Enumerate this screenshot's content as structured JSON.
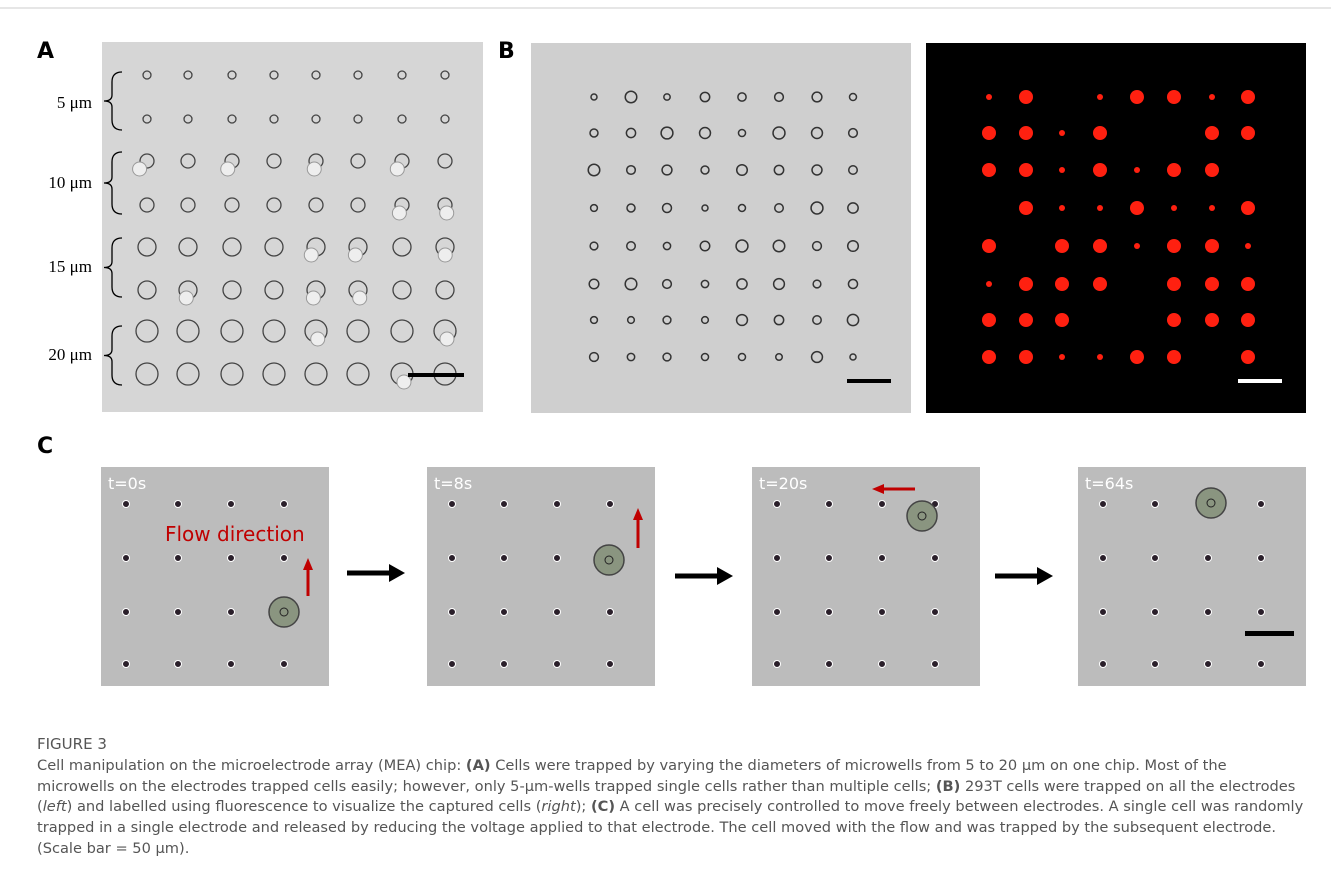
{
  "panels": {
    "a": {
      "label": "A",
      "sizes": [
        "5 μm",
        "10 μm",
        "15 μm",
        "20 μm"
      ]
    },
    "b": {
      "label": "B"
    },
    "c": {
      "label": "C",
      "frames": [
        {
          "time": "t=0s",
          "annotation": "Flow direction"
        },
        {
          "time": "t=8s"
        },
        {
          "time": "t=20s"
        },
        {
          "time": "t=64s"
        }
      ]
    }
  },
  "figure": {
    "title": "FIGURE 3",
    "caption": [
      "Cell manipulation on the microelectrode array (MEA) chip: ",
      "(A)",
      " Cells were trapped by varying the diameters of microwells from 5 to 20 μm on one chip. Most of the microwells on the electrodes trapped cells easily; however, only 5-μm-wells trapped single cells rather than multiple cells; ",
      "(B)",
      " 293T cells were trapped on all the electrodes (",
      "left",
      ") and labelled using fluorescence to visualize the captured cells (",
      "right",
      "); ",
      "(C)",
      " A cell was precisely controlled to move freely between electrodes. A single cell was randomly trapped in a single electrode and released by reducing the voltage applied to that electrode. The cell moved with the flow and was trapped by the subsequent electrode. (Scale bar = 50 μm)."
    ]
  }
}
